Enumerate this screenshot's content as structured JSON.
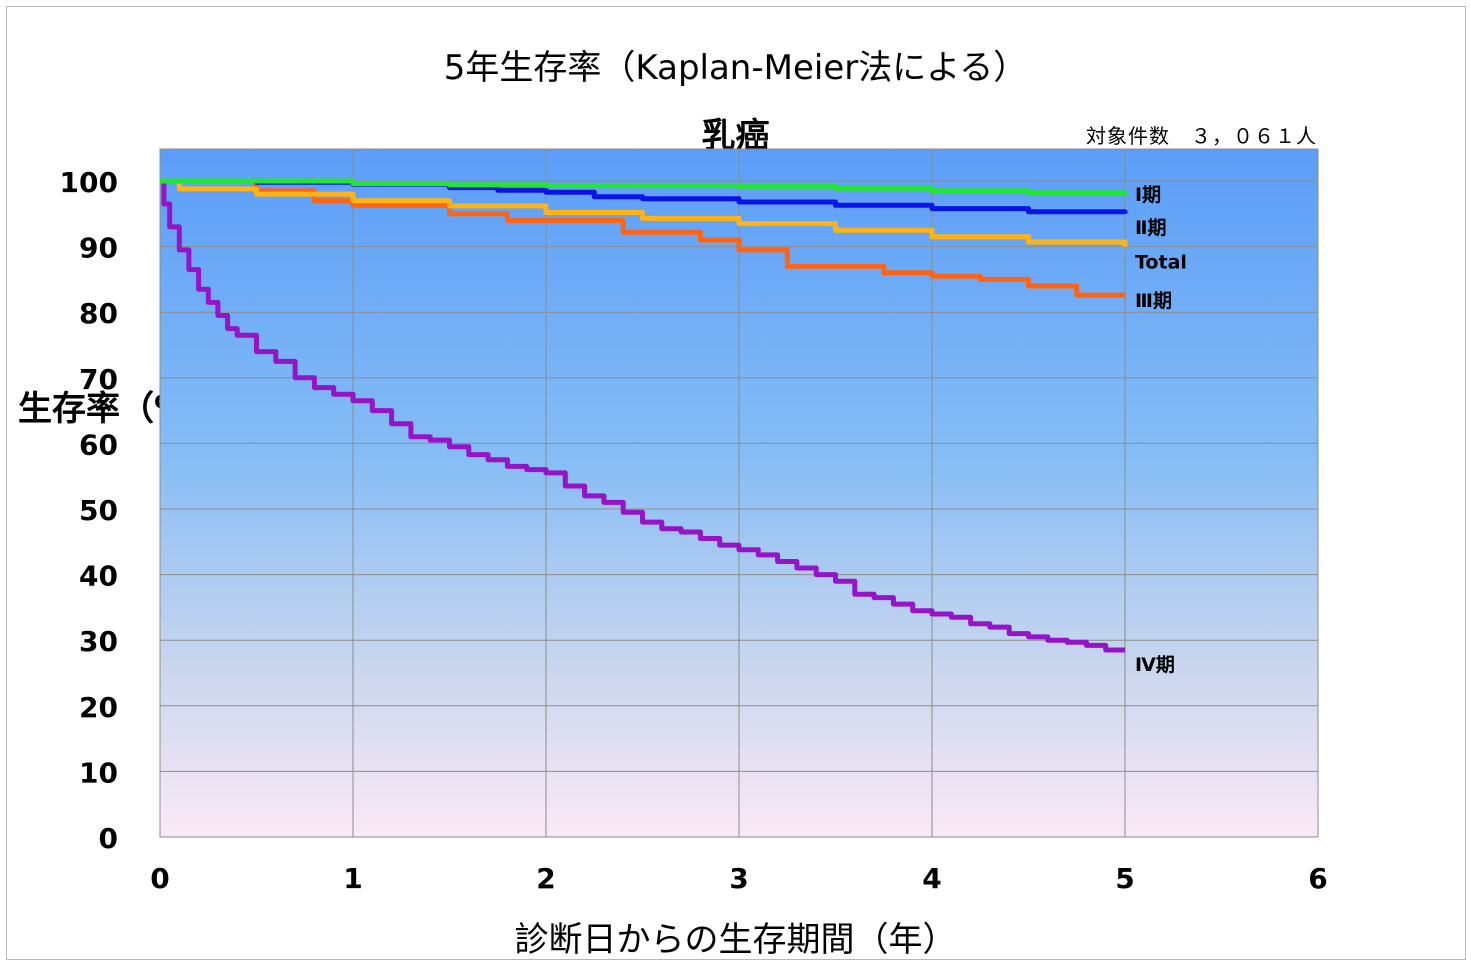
{
  "chart_data": {
    "type": "line",
    "title": "5年生存率（Kaplan-Meier法による）",
    "subtitle": "乳癌",
    "note": "対象件数　３，０６１人",
    "xlabel": "診断日からの生存期間（年）",
    "ylabel": "生存率（%）",
    "xlim": [
      0,
      6
    ],
    "ylim": [
      0,
      100
    ],
    "xticks": [
      0,
      1,
      2,
      3,
      4,
      5,
      6
    ],
    "yticks": [
      0,
      10,
      20,
      30,
      40,
      50,
      60,
      70,
      80,
      90,
      100
    ],
    "grid": true,
    "series": [
      {
        "name": "Ⅰ期",
        "color": "#22e632",
        "x": [
          0,
          0.5,
          1.0,
          1.5,
          2.0,
          2.5,
          3.0,
          3.5,
          4.0,
          4.5,
          5.0
        ],
        "y": [
          100,
          100,
          99.6,
          99.4,
          99.3,
          99.3,
          99.2,
          98.9,
          98.5,
          98.2,
          97.9
        ]
      },
      {
        "name": "Ⅱ期",
        "color": "#0a14e6",
        "x": [
          0,
          0.5,
          1.0,
          1.25,
          1.5,
          1.75,
          2.0,
          2.25,
          2.5,
          3.0,
          3.5,
          4.0,
          4.5,
          5.0
        ],
        "y": [
          100,
          99.8,
          99.5,
          99.5,
          99.0,
          98.6,
          98.3,
          97.6,
          97.3,
          96.8,
          96.3,
          95.8,
          95.3,
          95.0
        ]
      },
      {
        "name": "Total",
        "color": "#ffb414",
        "x": [
          0,
          0.1,
          0.5,
          1.0,
          1.5,
          2.0,
          2.5,
          3.0,
          3.5,
          4.0,
          4.5,
          5.0
        ],
        "y": [
          100,
          98.8,
          98.0,
          97.0,
          96.2,
          95.2,
          94.3,
          93.5,
          92.5,
          91.5,
          90.7,
          90.0
        ]
      },
      {
        "name": "Ⅲ期",
        "color": "#ff6414",
        "x": [
          0,
          0.5,
          0.8,
          1.0,
          1.5,
          1.8,
          2.1,
          2.4,
          2.8,
          3.0,
          3.25,
          3.5,
          3.75,
          4.0,
          4.25,
          4.5,
          4.75,
          5.0
        ],
        "y": [
          100,
          98.5,
          97.0,
          96.3,
          95.0,
          94.0,
          94.0,
          92.2,
          91.0,
          89.5,
          87.0,
          87.0,
          86.0,
          85.5,
          85.0,
          84.0,
          82.6,
          82.6
        ]
      },
      {
        "name": "Ⅳ期",
        "color": "#9614c8",
        "x": [
          0,
          0.02,
          0.05,
          0.1,
          0.15,
          0.2,
          0.25,
          0.3,
          0.35,
          0.4,
          0.5,
          0.6,
          0.7,
          0.8,
          0.9,
          1.0,
          1.1,
          1.2,
          1.3,
          1.4,
          1.5,
          1.6,
          1.7,
          1.8,
          1.9,
          2.0,
          2.1,
          2.2,
          2.3,
          2.4,
          2.5,
          2.6,
          2.7,
          2.8,
          2.9,
          3.0,
          3.1,
          3.2,
          3.3,
          3.4,
          3.5,
          3.6,
          3.7,
          3.8,
          3.9,
          4.0,
          4.1,
          4.2,
          4.3,
          4.4,
          4.5,
          4.6,
          4.7,
          4.8,
          4.9,
          5.0
        ],
        "y": [
          100,
          96.5,
          93.0,
          89.5,
          86.5,
          83.5,
          81.5,
          79.5,
          77.5,
          76.5,
          74.0,
          72.5,
          70.0,
          68.5,
          67.5,
          66.5,
          65.0,
          63.0,
          61.0,
          60.5,
          59.5,
          58.3,
          57.5,
          56.5,
          56.0,
          55.5,
          53.5,
          52.0,
          51.0,
          49.5,
          48.0,
          47.0,
          46.5,
          45.5,
          44.5,
          43.8,
          43.0,
          42.0,
          41.0,
          40.0,
          39.0,
          37.0,
          36.5,
          35.5,
          34.5,
          34.0,
          33.5,
          32.5,
          32.0,
          31.0,
          30.5,
          30.0,
          29.7,
          29.2,
          28.5,
          28.5
        ]
      }
    ]
  }
}
